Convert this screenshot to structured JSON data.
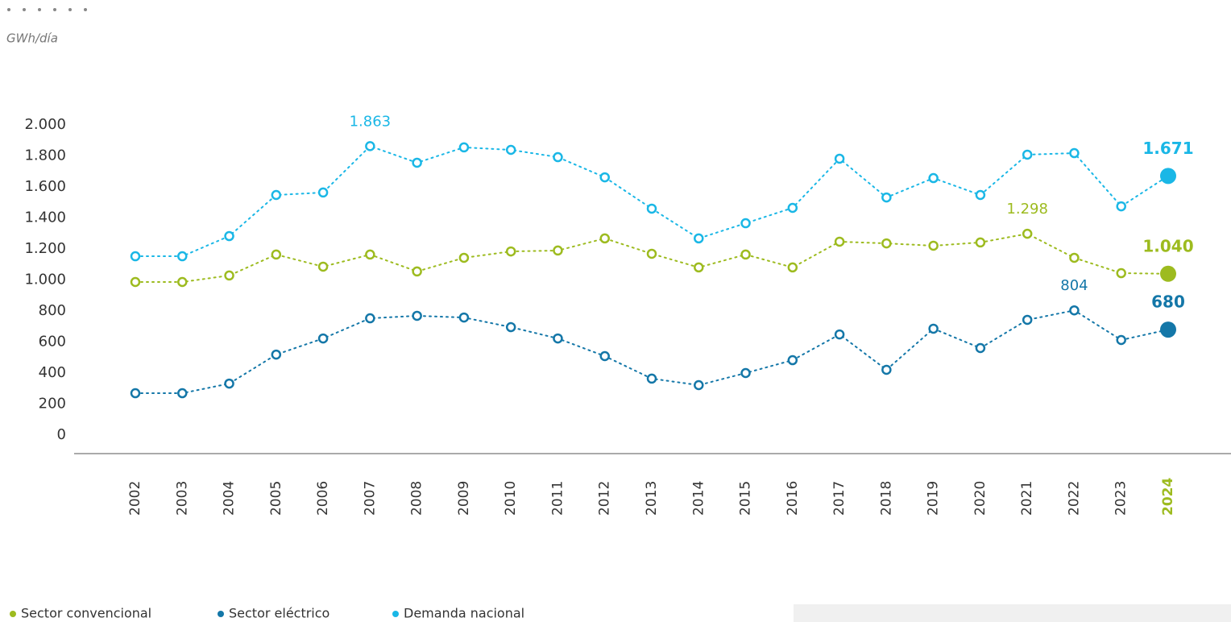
{
  "chart_data": {
    "type": "line",
    "unit_label": "GWh/día",
    "categories": [
      "2002",
      "2003",
      "2004",
      "2005",
      "2006",
      "2007",
      "2008",
      "2009",
      "2010",
      "2011",
      "2012",
      "2013",
      "2014",
      "2015",
      "2016",
      "2017",
      "2018",
      "2019",
      "2020",
      "2021",
      "2022",
      "2023",
      "2024"
    ],
    "series": [
      {
        "name": "Sector convencional",
        "color": "#9dbb1f",
        "values": [
          987,
          987,
          1029,
          1164,
          1086,
          1164,
          1055,
          1143,
          1184,
          1190,
          1268,
          1169,
          1081,
          1164,
          1081,
          1247,
          1236,
          1221,
          1242,
          1298,
          1143,
          1044,
          1040
        ],
        "value_labels": [
          null,
          null,
          null,
          null,
          null,
          null,
          null,
          null,
          null,
          null,
          null,
          null,
          null,
          null,
          null,
          null,
          null,
          null,
          null,
          "1.298",
          null,
          null,
          "1.040"
        ]
      },
      {
        "name": "Sector eléctrico",
        "color": "#1477a8",
        "values": [
          270,
          270,
          332,
          519,
          623,
          753,
          769,
          758,
          696,
          623,
          509,
          364,
          322,
          400,
          483,
          649,
          421,
          686,
          561,
          743,
          804,
          613,
          680
        ],
        "value_labels": [
          null,
          null,
          null,
          null,
          null,
          null,
          null,
          null,
          null,
          null,
          null,
          null,
          null,
          null,
          null,
          null,
          null,
          null,
          null,
          null,
          "804",
          null,
          "680"
        ]
      },
      {
        "name": "Demanda nacional",
        "color": "#1ab7e6",
        "values": [
          1153,
          1153,
          1283,
          1548,
          1564,
          1863,
          1756,
          1855,
          1839,
          1792,
          1662,
          1460,
          1268,
          1366,
          1465,
          1782,
          1532,
          1657,
          1548,
          1808,
          1818,
          1475,
          1671
        ],
        "value_labels": [
          null,
          null,
          null,
          null,
          null,
          "1.863",
          null,
          null,
          null,
          null,
          null,
          null,
          null,
          null,
          null,
          null,
          null,
          null,
          null,
          null,
          null,
          null,
          "1.671"
        ]
      }
    ],
    "ylim": [
      0,
      2000
    ],
    "yticks": [
      0,
      200,
      400,
      600,
      800,
      {
        "value": 1000,
        "label": "1.000"
      },
      {
        "value": 1200,
        "label": "1.200"
      },
      {
        "value": 1400,
        "label": "1.400"
      },
      {
        "value": 1600,
        "label": "1.600"
      },
      {
        "value": 1800,
        "label": "1.800"
      },
      {
        "value": 2000,
        "label": "2.000"
      }
    ],
    "grid": false
  }
}
